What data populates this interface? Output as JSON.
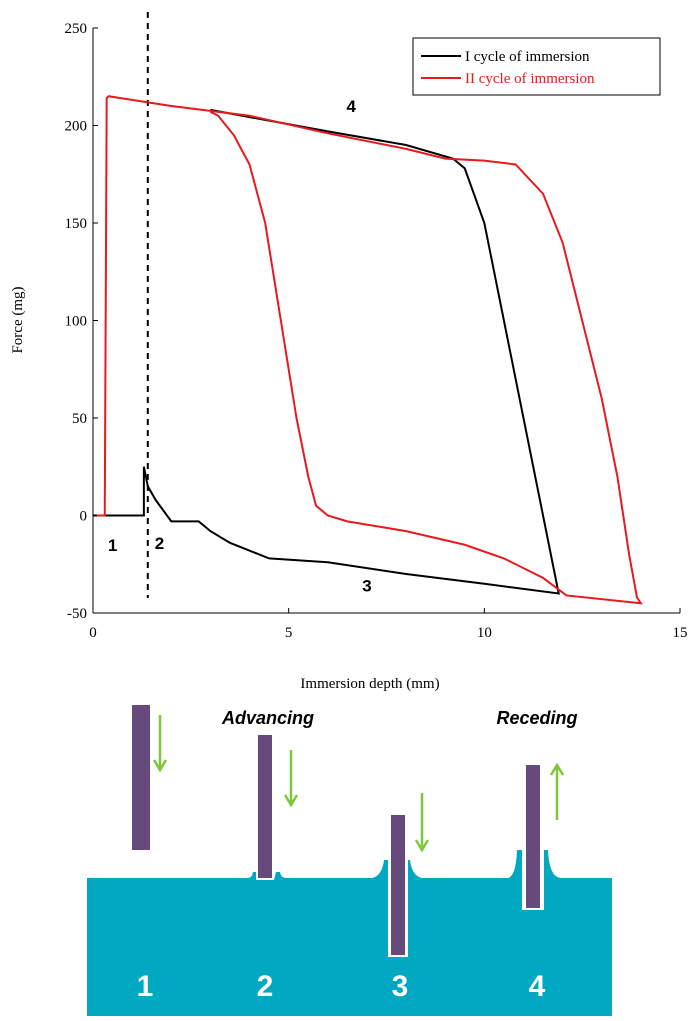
{
  "chart_data": {
    "type": "line",
    "xlabel": "Immersion depth (mm)",
    "ylabel": "Force (mg)",
    "xlim": [
      0,
      15
    ],
    "ylim": [
      -50,
      250
    ],
    "xticks": [
      0,
      5,
      10,
      15
    ],
    "yticks": [
      -50,
      0,
      50,
      100,
      150,
      200,
      250
    ],
    "legend": "upper right",
    "dashed_line_x": 1.4,
    "series": [
      {
        "name": "I cycle of immersion",
        "color": "#000000",
        "x": [
          0,
          1.3,
          1.3,
          1.4,
          1.6,
          2,
          2.5,
          2.7,
          3,
          3.5,
          4.5,
          6,
          8,
          10,
          11.9,
          11.8,
          11.5,
          11,
          10.5,
          10,
          9.5,
          9.2,
          8,
          6,
          3
        ],
        "values": [
          0,
          0,
          25,
          15,
          8,
          -3,
          -3,
          -3,
          -8,
          -14,
          -22,
          -24,
          -30,
          -35,
          -40,
          -30,
          0,
          50,
          100,
          150,
          178,
          183,
          190,
          197,
          208
        ]
      },
      {
        "name": "II cycle of immersion",
        "color": "#e8191c",
        "x": [
          0.1,
          0.3,
          0.35,
          0.4,
          2,
          4,
          6,
          8,
          9,
          10,
          10.8,
          11.5,
          12,
          12.5,
          13,
          13.4,
          13.7,
          13.9,
          14,
          12.1,
          11.5,
          10.5,
          9.5,
          8,
          6.5,
          6,
          5.7,
          5.5,
          5.2,
          4.8,
          4.4,
          4,
          3.6,
          3.2,
          3
        ],
        "values": [
          0,
          0,
          214,
          215,
          210,
          205,
          196,
          188,
          183,
          182,
          180,
          165,
          140,
          100,
          60,
          20,
          -20,
          -42,
          -45,
          -41,
          -32,
          -22,
          -15,
          -8,
          -3,
          0,
          5,
          20,
          50,
          100,
          150,
          180,
          195,
          205,
          207
        ]
      }
    ],
    "annotations": [
      {
        "text": "1",
        "x": 0.5,
        "y": -15
      },
      {
        "text": "2",
        "x": 1.7,
        "y": -14
      },
      {
        "text": "3",
        "x": 7,
        "y": -36
      },
      {
        "text": "4",
        "x": 6.6,
        "y": 210
      }
    ]
  },
  "diagram": {
    "phases": [
      "Advancing",
      "Receding"
    ],
    "steps": [
      "1",
      "2",
      "3",
      "4"
    ]
  }
}
